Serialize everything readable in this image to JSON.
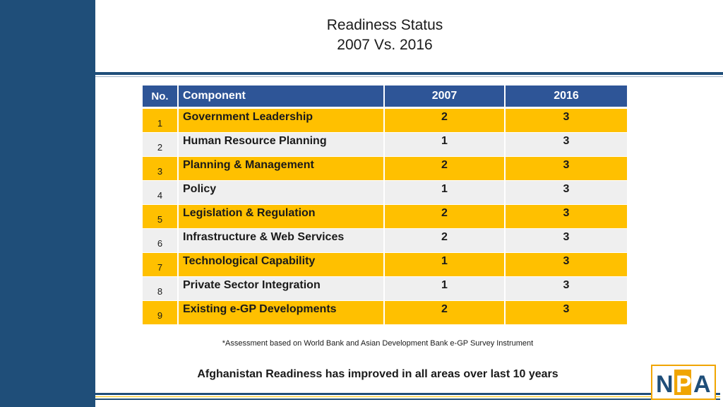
{
  "slide": {
    "title_line1": "Readiness Status",
    "title_line2": "2007 Vs. 2016",
    "footnote": "*Assessment based on World Bank and Asian Development Bank e-GP Survey Instrument",
    "conclusion": "Afghanistan Readiness has improved in all areas over last 10 years",
    "logo_text": "NPA"
  },
  "table": {
    "headers": [
      "No.",
      "Component",
      "2007",
      "2016"
    ],
    "rows": [
      {
        "no": "1",
        "component": "Government Leadership",
        "y2007": "2",
        "y2016": "3"
      },
      {
        "no": "2",
        "component": "Human Resource Planning",
        "y2007": "1",
        "y2016": "3"
      },
      {
        "no": "3",
        "component": "Planning & Management",
        "y2007": "2",
        "y2016": "3"
      },
      {
        "no": "4",
        "component": "Policy",
        "y2007": "1",
        "y2016": "3"
      },
      {
        "no": "5",
        "component": "Legislation & Regulation",
        "y2007": "2",
        "y2016": "3"
      },
      {
        "no": "6",
        "component": "Infrastructure & Web Services",
        "y2007": "2",
        "y2016": "3"
      },
      {
        "no": "7",
        "component": "Technological Capability",
        "y2007": "1",
        "y2016": "3"
      },
      {
        "no": "8",
        "component": "Private Sector Integration",
        "y2007": "1",
        "y2016": "3"
      },
      {
        "no": "9",
        "component": "Existing e-GP Developments",
        "y2007": "2",
        "y2016": "3"
      }
    ]
  },
  "colors": {
    "navy": "#1f4e79",
    "header_blue": "#2e5597",
    "accent_yellow": "#ffc000",
    "row_gray": "#efefef"
  }
}
